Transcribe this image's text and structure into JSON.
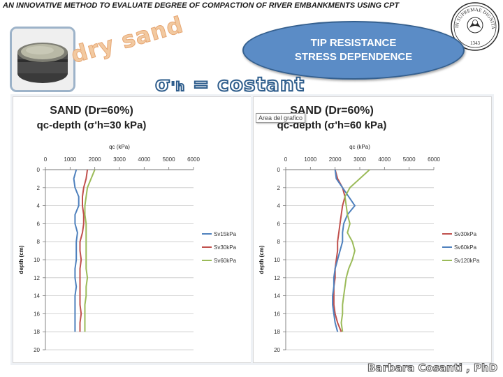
{
  "header": {
    "title": "AN INNOVATIVE METHOD TO EVALUATE DEGREE OF COMPACTION OF RIVER EMBANKMENTS USING CPT"
  },
  "logo": {
    "text": "IN SUPREMAE DIGNITATIS",
    "year": "1343",
    "color": "#2b2b2b"
  },
  "photo_label": "dry sand",
  "callout": {
    "line1": "TIP RESISTANCE",
    "line2": "STRESS DEPENDENCE",
    "fill": "#5b8cc6"
  },
  "subtitle": {
    "sigma": "σ",
    "sub": "'h",
    "eq": " = costant"
  },
  "tooltip": "Area del grafico",
  "author": "Barbara   Cosanti , PhD",
  "chart_data": [
    {
      "type": "line",
      "title": "SAND (Dr=60%)",
      "subtitle": "qc-depth (σ'h=30 kPa)",
      "xlabel": "qc (kPa)",
      "ylabel": "depth (cm)",
      "xlim": [
        0,
        6000
      ],
      "ylim": [
        0,
        20
      ],
      "xticks": [
        "0",
        "1000",
        "2000",
        "3000",
        "4000",
        "5000",
        "6000"
      ],
      "yticks": [
        "0",
        "2",
        "4",
        "6",
        "8",
        "10",
        "12",
        "14",
        "16",
        "18",
        "20"
      ],
      "legend_position": "right",
      "depth": [
        0,
        1,
        2,
        3,
        4,
        5,
        6,
        7,
        8,
        9,
        10,
        11,
        12,
        13,
        14,
        15,
        16,
        17,
        18
      ],
      "series": [
        {
          "name": "Sv15kPa",
          "color": "#4f81bd",
          "values": [
            1250,
            1150,
            1200,
            1350,
            1350,
            1200,
            1200,
            1300,
            1250,
            1250,
            1250,
            1200,
            1200,
            1250,
            1200,
            1200,
            1200,
            1200,
            1200
          ]
        },
        {
          "name": "Sv30kPa",
          "color": "#c0504d",
          "values": [
            1700,
            1650,
            1550,
            1500,
            1500,
            1550,
            1550,
            1500,
            1400,
            1400,
            1450,
            1400,
            1400,
            1400,
            1400,
            1400,
            1450,
            1400,
            1400
          ]
        },
        {
          "name": "Sv60kPa",
          "color": "#9bbb59",
          "values": [
            2000,
            1850,
            1700,
            1650,
            1600,
            1600,
            1650,
            1650,
            1650,
            1650,
            1650,
            1650,
            1700,
            1650,
            1650,
            1600,
            1600,
            1600,
            1600
          ]
        }
      ]
    },
    {
      "type": "line",
      "title": "SAND (Dr=60%)",
      "subtitle": "qc-depth (σ'h=60 kPa)",
      "xlabel": "qc (kPa)",
      "ylabel": "depth (cm)",
      "xlim": [
        0,
        6000
      ],
      "ylim": [
        0,
        20
      ],
      "xticks": [
        "0",
        "1000",
        "2000",
        "3000",
        "4000",
        "5000",
        "6000"
      ],
      "yticks": [
        "0",
        "2",
        "4",
        "6",
        "8",
        "10",
        "12",
        "14",
        "16",
        "18",
        "20"
      ],
      "legend_position": "right",
      "depth": [
        0,
        1,
        2,
        3,
        4,
        5,
        6,
        7,
        8,
        9,
        10,
        11,
        12,
        13,
        14,
        15,
        16,
        17,
        18
      ],
      "series": [
        {
          "name": "Sv30kPa",
          "color": "#c0504d",
          "values": [
            2000,
            2100,
            2300,
            2400,
            2300,
            2250,
            2200,
            2150,
            2100,
            2100,
            2050,
            2000,
            2000,
            1950,
            1950,
            1950,
            2000,
            2100,
            2250
          ]
        },
        {
          "name": "Sv60kPa",
          "color": "#4f81bd",
          "values": [
            2000,
            2050,
            2300,
            2550,
            2800,
            2500,
            2350,
            2300,
            2300,
            2200,
            2100,
            2000,
            1950,
            1950,
            1900,
            1900,
            1950,
            2000,
            2100
          ]
        },
        {
          "name": "Sv120kPa",
          "color": "#9bbb59",
          "values": [
            3400,
            3000,
            2600,
            2400,
            2450,
            2500,
            2600,
            2500,
            2700,
            2800,
            2700,
            2550,
            2450,
            2400,
            2350,
            2300,
            2300,
            2250,
            2300
          ]
        }
      ]
    }
  ]
}
